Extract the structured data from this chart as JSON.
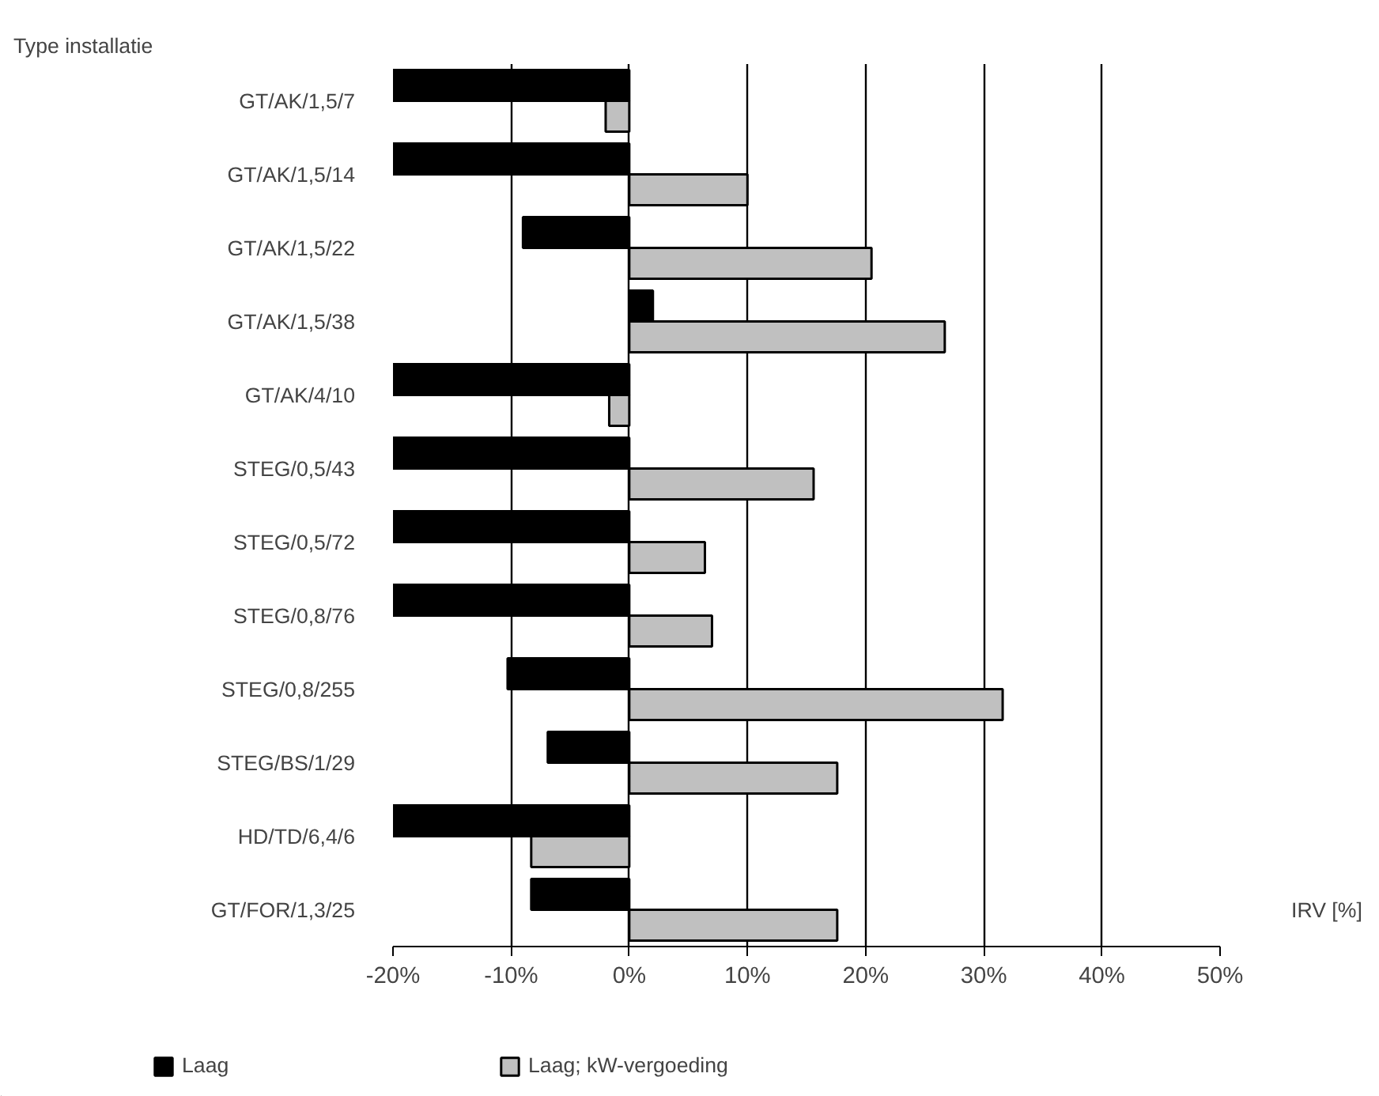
{
  "chart_data": {
    "type": "bar",
    "orientation": "horizontal",
    "ylabel": "Type installatie",
    "xlabel": "IRV [%]",
    "categories": [
      "GT/AK/1,5/7",
      "GT/AK/1,5/14",
      "GT/AK/1,5/22",
      "GT/AK/1,5/38",
      "GT/AK/4/10",
      "STEG/0,5/43",
      "STEG/0,5/72",
      "STEG/0,8/76",
      "STEG/0,8/255",
      "STEG/BS/1/29",
      "HD/TD/6,4/6",
      "GT/FOR/1,3/25"
    ],
    "series": [
      {
        "name": "Laag",
        "color": "#000000",
        "values": [
          -20,
          -20,
          -9,
          2,
          -20,
          -20,
          -20,
          -20,
          -10.3,
          -6.9,
          -20,
          -8.3
        ]
      },
      {
        "name": "Laag; kW-vergoeding",
        "color": "#c0c0c0",
        "values": [
          -2,
          10,
          20.5,
          26.7,
          -1.7,
          15.6,
          6.4,
          7,
          31.6,
          17.6,
          -8.3,
          17.6
        ]
      }
    ],
    "xlim": [
      -20,
      50
    ],
    "xticks": [
      {
        "value": -20,
        "label": "-20%"
      },
      {
        "value": -10,
        "label": "-10%"
      },
      {
        "value": 0,
        "label": "0%"
      },
      {
        "value": 10,
        "label": "10%"
      },
      {
        "value": 20,
        "label": "20%"
      },
      {
        "value": 30,
        "label": "30%"
      },
      {
        "value": 40,
        "label": "40%"
      },
      {
        "value": 50,
        "label": "50%"
      }
    ],
    "grid": "x",
    "legend": "bottom"
  }
}
